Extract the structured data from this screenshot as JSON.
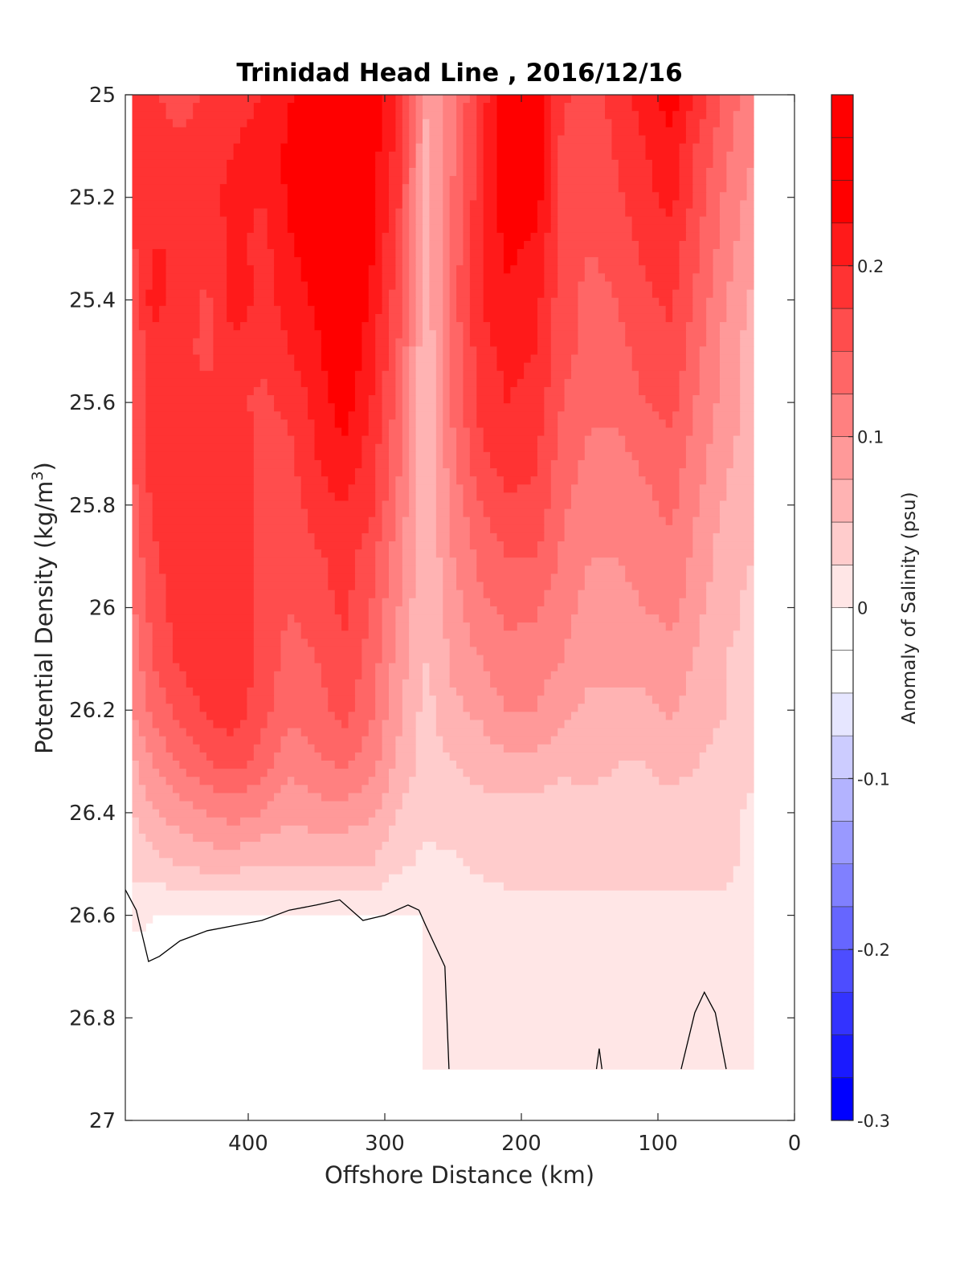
{
  "chart_data": {
    "type": "heatmap",
    "subtype": "filled-contour section",
    "title": "Trinidad Head Line , 2016/12/16",
    "xlabel": "Offshore Distance (km)",
    "ylabel_main": "Potential Density (kg/m",
    "ylabel_sup": "3",
    "ylabel_close": ")",
    "xlim": [
      490,
      0
    ],
    "x_reversed": true,
    "ylim": [
      25,
      27
    ],
    "y_reversed": true,
    "x_ticks": [
      400,
      300,
      200,
      100,
      0
    ],
    "x_tick_labels": [
      "400",
      "300",
      "200",
      "100",
      "0"
    ],
    "y_ticks": [
      25,
      25.2,
      25.4,
      25.6,
      25.8,
      26,
      26.2,
      26.4,
      26.6,
      26.8,
      27
    ],
    "y_tick_labels": [
      "25",
      "25.2",
      "25.4",
      "25.6",
      "25.8",
      "26",
      "26.2",
      "26.4",
      "26.6",
      "26.8",
      "27"
    ],
    "colorbar": {
      "label": "Anomaly of Salinity (psu)",
      "limits": [
        -0.3,
        0.3
      ],
      "level_step": 0.025,
      "ticks": [
        -0.3,
        -0.2,
        -0.1,
        0,
        0.1,
        0.2
      ],
      "tick_labels": [
        "-0.3",
        "-0.2",
        "-0.1",
        "0",
        "0.1",
        "0.2"
      ],
      "colors": [
        "#0000ff",
        "#1a1aff",
        "#3333ff",
        "#4d4dff",
        "#6666ff",
        "#8080ff",
        "#9999ff",
        "#b3b3ff",
        "#ccccff",
        "#e6e6ff",
        "#ffffff",
        "#ffffff",
        "#ffe6e6",
        "#ffcccc",
        "#ffb3b3",
        "#ff9999",
        "#ff8080",
        "#ff6666",
        "#ff4d4d",
        "#ff3333",
        "#ff1a1a",
        "#ff0000",
        "#ff0000",
        "#ff0000"
      ]
    },
    "x": [
      485,
      470,
      450,
      430,
      410,
      390,
      370,
      350,
      330,
      310,
      290,
      270,
      250,
      230,
      210,
      190,
      170,
      150,
      130,
      110,
      90,
      70,
      50,
      30
    ],
    "y": [
      25.0,
      25.1,
      25.2,
      25.3,
      25.4,
      25.5,
      25.6,
      25.7,
      25.8,
      25.9,
      26.0,
      26.1,
      26.2,
      26.3,
      26.4,
      26.5,
      26.6,
      26.7,
      26.8,
      26.9
    ],
    "z": [
      [
        0.2,
        0.18,
        0.16,
        0.18,
        0.19,
        0.2,
        0.22,
        0.27,
        0.3,
        0.25,
        0.2,
        0.08,
        0.12,
        0.18,
        0.26,
        0.24,
        0.18,
        0.16,
        0.19,
        0.21,
        0.24,
        0.19,
        0.14,
        0.11
      ],
      [
        0.19,
        0.19,
        0.18,
        0.19,
        0.2,
        0.21,
        0.23,
        0.26,
        0.3,
        0.24,
        0.19,
        0.07,
        0.12,
        0.19,
        0.26,
        0.24,
        0.17,
        0.15,
        0.18,
        0.2,
        0.22,
        0.17,
        0.13,
        0.1
      ],
      [
        0.18,
        0.2,
        0.19,
        0.19,
        0.21,
        0.2,
        0.23,
        0.25,
        0.28,
        0.23,
        0.18,
        0.06,
        0.13,
        0.19,
        0.25,
        0.24,
        0.17,
        0.15,
        0.17,
        0.19,
        0.21,
        0.16,
        0.12,
        0.09
      ],
      [
        0.17,
        0.2,
        0.2,
        0.18,
        0.21,
        0.19,
        0.22,
        0.24,
        0.27,
        0.23,
        0.17,
        0.06,
        0.13,
        0.2,
        0.23,
        0.22,
        0.17,
        0.15,
        0.16,
        0.18,
        0.19,
        0.15,
        0.11,
        0.08
      ],
      [
        0.16,
        0.21,
        0.19,
        0.17,
        0.22,
        0.19,
        0.21,
        0.23,
        0.26,
        0.22,
        0.16,
        0.06,
        0.14,
        0.2,
        0.22,
        0.21,
        0.16,
        0.14,
        0.15,
        0.17,
        0.18,
        0.14,
        0.1,
        0.07
      ],
      [
        0.15,
        0.19,
        0.18,
        0.17,
        0.19,
        0.18,
        0.2,
        0.22,
        0.25,
        0.21,
        0.15,
        0.05,
        0.13,
        0.19,
        0.21,
        0.2,
        0.16,
        0.14,
        0.14,
        0.16,
        0.17,
        0.13,
        0.09,
        0.06
      ],
      [
        0.15,
        0.19,
        0.19,
        0.18,
        0.18,
        0.17,
        0.18,
        0.21,
        0.24,
        0.2,
        0.14,
        0.05,
        0.13,
        0.18,
        0.2,
        0.19,
        0.15,
        0.13,
        0.13,
        0.15,
        0.16,
        0.12,
        0.09,
        0.06
      ],
      [
        0.15,
        0.19,
        0.19,
        0.19,
        0.19,
        0.17,
        0.17,
        0.2,
        0.22,
        0.19,
        0.13,
        0.05,
        0.12,
        0.17,
        0.19,
        0.18,
        0.14,
        0.12,
        0.12,
        0.13,
        0.14,
        0.11,
        0.08,
        0.06
      ],
      [
        0.14,
        0.18,
        0.19,
        0.19,
        0.19,
        0.17,
        0.16,
        0.19,
        0.2,
        0.18,
        0.12,
        0.05,
        0.11,
        0.15,
        0.17,
        0.17,
        0.13,
        0.11,
        0.11,
        0.12,
        0.13,
        0.1,
        0.07,
        0.05
      ],
      [
        0.13,
        0.17,
        0.19,
        0.19,
        0.19,
        0.17,
        0.15,
        0.17,
        0.19,
        0.16,
        0.11,
        0.05,
        0.1,
        0.13,
        0.15,
        0.15,
        0.12,
        0.1,
        0.1,
        0.11,
        0.12,
        0.09,
        0.06,
        0.05
      ],
      [
        0.12,
        0.16,
        0.19,
        0.19,
        0.19,
        0.17,
        0.15,
        0.16,
        0.18,
        0.15,
        0.1,
        0.05,
        0.09,
        0.12,
        0.13,
        0.13,
        0.11,
        0.09,
        0.09,
        0.1,
        0.11,
        0.08,
        0.06,
        0.04
      ],
      [
        0.11,
        0.15,
        0.18,
        0.19,
        0.19,
        0.17,
        0.14,
        0.15,
        0.17,
        0.14,
        0.09,
        0.05,
        0.08,
        0.1,
        0.12,
        0.11,
        0.1,
        0.08,
        0.08,
        0.08,
        0.09,
        0.07,
        0.05,
        0.04
      ],
      [
        0.1,
        0.13,
        0.16,
        0.18,
        0.19,
        0.16,
        0.13,
        0.14,
        0.16,
        0.13,
        0.08,
        0.04,
        0.07,
        0.08,
        0.1,
        0.1,
        0.08,
        0.07,
        0.07,
        0.07,
        0.08,
        0.06,
        0.05,
        0.03
      ],
      [
        0.07,
        0.1,
        0.13,
        0.15,
        0.16,
        0.14,
        0.11,
        0.12,
        0.13,
        0.11,
        0.07,
        0.04,
        0.05,
        0.06,
        0.07,
        0.07,
        0.06,
        0.06,
        0.05,
        0.05,
        0.06,
        0.05,
        0.04,
        0.03
      ],
      [
        0.05,
        0.07,
        0.09,
        0.1,
        0.11,
        0.1,
        0.08,
        0.09,
        0.09,
        0.08,
        0.05,
        0.03,
        0.04,
        0.04,
        0.04,
        0.04,
        0.03,
        0.04,
        0.04,
        0.04,
        0.04,
        0.04,
        0.03,
        0.02
      ],
      [
        0.03,
        0.04,
        0.05,
        0.06,
        0.06,
        0.05,
        0.05,
        0.05,
        0.05,
        0.05,
        0.03,
        0.02,
        0.02,
        0.03,
        0.03,
        0.03,
        0.03,
        0.03,
        0.03,
        0.03,
        0.03,
        0.03,
        0.03,
        0.02
      ],
      [
        0.01,
        0.0,
        0.0,
        0.0,
        0.0,
        0.0,
        0.0,
        0.0,
        0.0,
        0.0,
        0.0,
        0.0,
        0.01,
        0.01,
        0.02,
        0.02,
        0.02,
        0.02,
        0.02,
        0.02,
        0.02,
        0.02,
        0.02,
        0.01
      ],
      [
        -0.02,
        -0.01,
        -0.02,
        -0.02,
        -0.02,
        -0.02,
        -0.02,
        -0.02,
        -0.02,
        -0.02,
        -0.01,
        0.0,
        0.0,
        0.0,
        0.01,
        0.01,
        0.01,
        0.01,
        0.01,
        0.0,
        0.0,
        0.01,
        0.01,
        0.0
      ],
      [
        -0.01,
        -0.01,
        -0.02,
        -0.02,
        -0.02,
        -0.02,
        -0.02,
        -0.02,
        -0.02,
        -0.02,
        -0.01,
        0.0,
        0.0,
        0.0,
        0.0,
        0.0,
        0.0,
        0.0,
        0.0,
        0.0,
        0.0,
        0.0,
        0.01,
        0.0
      ],
      [
        0.0,
        0.0,
        -0.01,
        -0.01,
        -0.01,
        -0.01,
        -0.01,
        -0.01,
        -0.01,
        -0.01,
        -0.01,
        0.0,
        0.0,
        0.0,
        0.0,
        0.0,
        0.0,
        0.0,
        0.0,
        0.0,
        0.0,
        0.0,
        0.0,
        0.0
      ]
    ],
    "zero_contour_segments": [
      [
        [
          490,
          26.55
        ],
        [
          482,
          26.59
        ],
        [
          473,
          26.69
        ],
        [
          465,
          26.68
        ],
        [
          450,
          26.65
        ],
        [
          430,
          26.63
        ],
        [
          410,
          26.62
        ],
        [
          390,
          26.61
        ],
        [
          370,
          26.59
        ],
        [
          350,
          26.58
        ],
        [
          333,
          26.57
        ],
        [
          316,
          26.61
        ],
        [
          300,
          26.6
        ],
        [
          283,
          26.58
        ],
        [
          275,
          26.59
        ],
        [
          270,
          26.62
        ],
        [
          263,
          26.66
        ],
        [
          256,
          26.7
        ],
        [
          253,
          26.9
        ]
      ],
      [
        [
          145,
          26.9
        ],
        [
          143,
          26.86
        ],
        [
          141,
          26.9
        ]
      ],
      [
        [
          83,
          26.9
        ],
        [
          73,
          26.79
        ],
        [
          66,
          26.75
        ],
        [
          58,
          26.79
        ],
        [
          50,
          26.9
        ]
      ]
    ]
  }
}
